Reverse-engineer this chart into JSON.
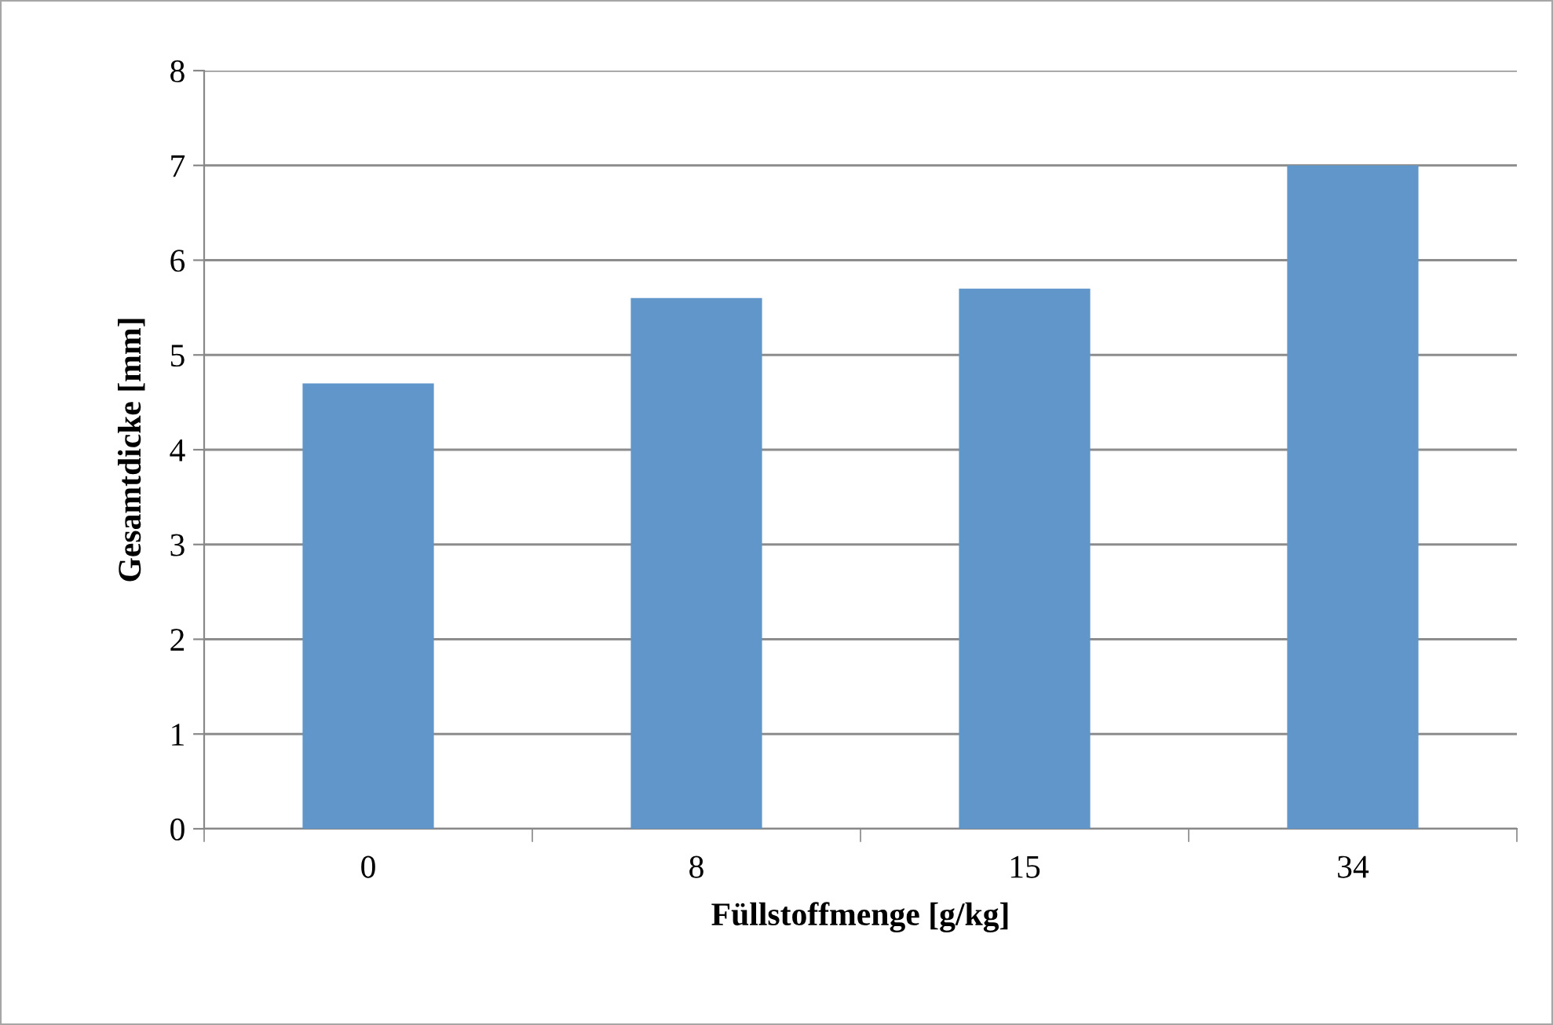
{
  "chart_data": {
    "type": "bar",
    "xlabel": "Füllstoffmenge [g/kg]",
    "ylabel": "Gesamtdicke [mm]",
    "categories": [
      "0",
      "8",
      "15",
      "34"
    ],
    "values": [
      4.7,
      5.6,
      5.7,
      7.0
    ],
    "color": "#6096c9",
    "ylim": [
      0,
      8
    ],
    "yticks": [
      0,
      1,
      2,
      3,
      4,
      5,
      6,
      7,
      8
    ],
    "grid": "y",
    "legend": false
  }
}
